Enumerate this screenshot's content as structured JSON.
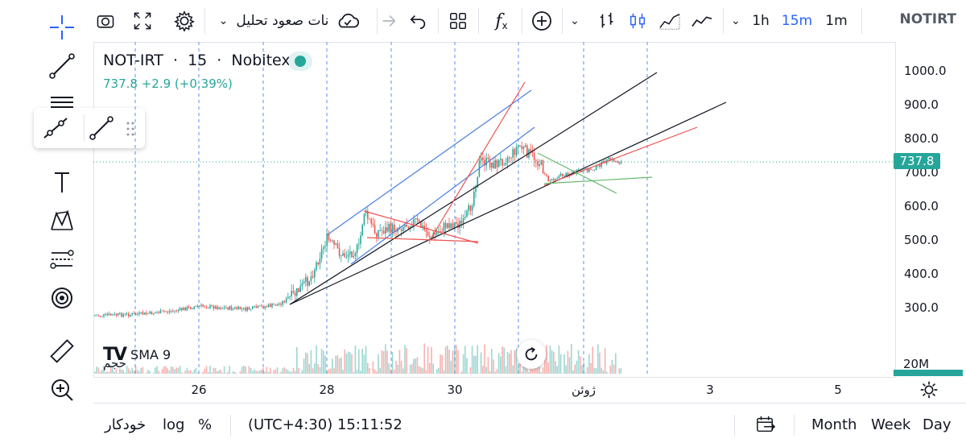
{
  "symbol": {
    "name": "NOT-IRT",
    "interval": "15",
    "exchange": "Nobitex",
    "price": "737.8",
    "change": "+2.9 (+0.39%)",
    "short_name": "NOTIRT"
  },
  "toolbar": {
    "indicators_label": "نات صعود تحلیل",
    "timeframes": [
      "1h",
      "15m",
      "1m"
    ],
    "active_timeframe": "15m"
  },
  "left_tools": [
    "crosshair-icon",
    "trendline-icon",
    "horizontal-lines-icon",
    "brush-icon",
    "text-icon",
    "pattern-icon",
    "fib-icon",
    "target-icon",
    "ruler-icon",
    "zoom-in-icon"
  ],
  "price_axis": {
    "ticks": [
      "1000.0",
      "900.0",
      "800.0",
      "700.0",
      "600.0",
      "500.0",
      "400.0",
      "300.0"
    ],
    "current_price_tag": "737.8",
    "volume_label": "20M"
  },
  "time_axis": {
    "labels": [
      "26",
      "28",
      "30",
      "ژوئن",
      "3",
      "5"
    ]
  },
  "volume_pane": {
    "indicator": "SMA 9",
    "label": "حجم"
  },
  "bottom_bar": {
    "auto_label": "خودکار",
    "log_label": "log",
    "percent_label": "%",
    "clock": "(UTC+4:30) 15:11:52",
    "ranges": [
      "Month",
      "Week",
      "Day"
    ]
  },
  "colors": {
    "up": "#26a69a",
    "down": "#ef5350",
    "accent": "#2962ff",
    "channel_black": "#131722",
    "channel_blue": "#4a7fe0",
    "channel_red": "#ef5350",
    "triangle_green": "#66bb6a"
  }
}
